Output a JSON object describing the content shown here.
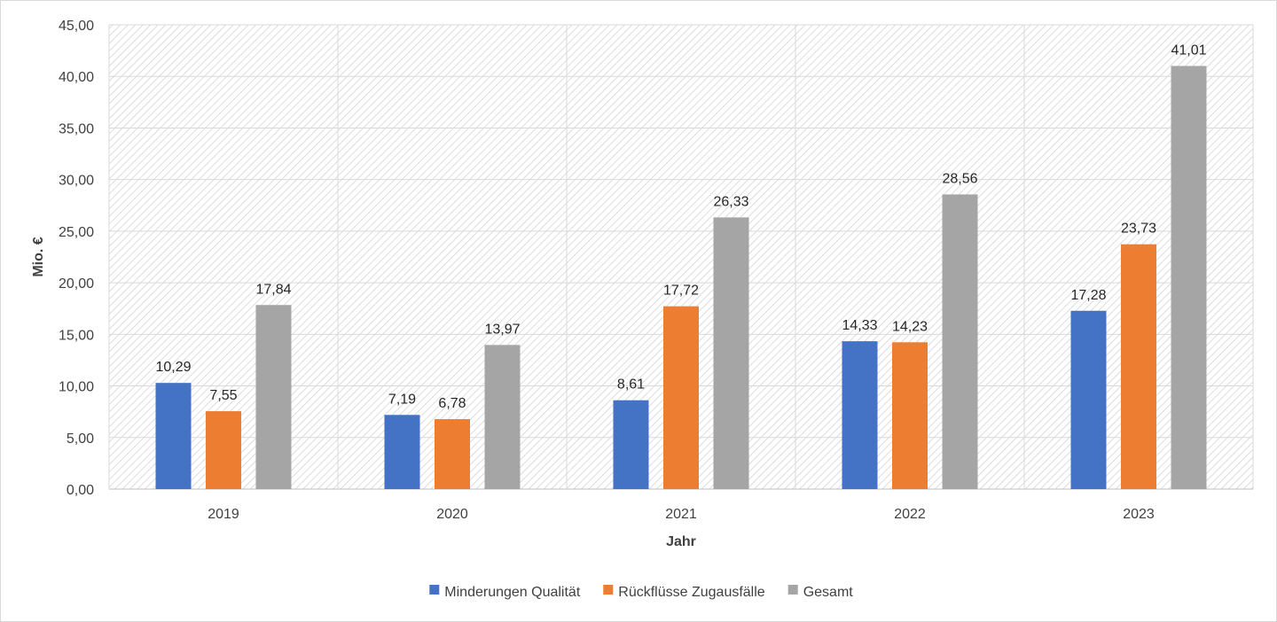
{
  "chart_data": {
    "type": "bar",
    "title": "",
    "xlabel": "Jahr",
    "ylabel": "Mio. €",
    "ylim": [
      0,
      45
    ],
    "y_ticks": [
      "0,00",
      "5,00",
      "10,00",
      "15,00",
      "20,00",
      "25,00",
      "30,00",
      "35,00",
      "40,00",
      "45,00"
    ],
    "categories": [
      "2019",
      "2020",
      "2021",
      "2022",
      "2023"
    ],
    "grid": true,
    "legend_position": "bottom-center",
    "series": [
      {
        "name": "Minderungen Qualität",
        "color": "#4472c4",
        "values": [
          10.29,
          7.19,
          8.61,
          14.33,
          17.28
        ],
        "labels": [
          "10,29",
          "7,19",
          "8,61",
          "14,33",
          "17,28"
        ]
      },
      {
        "name": "Rückflüsse Zugausfälle",
        "color": "#ed7d31",
        "values": [
          7.55,
          6.78,
          17.72,
          14.23,
          23.73
        ],
        "labels": [
          "7,55",
          "6,78",
          "17,72",
          "14,23",
          "23,73"
        ]
      },
      {
        "name": "Gesamt",
        "color": "#a5a5a5",
        "values": [
          17.84,
          13.97,
          26.33,
          28.56,
          41.01
        ],
        "labels": [
          "17,84",
          "13,97",
          "26,33",
          "28,56",
          "41,01"
        ]
      }
    ]
  }
}
